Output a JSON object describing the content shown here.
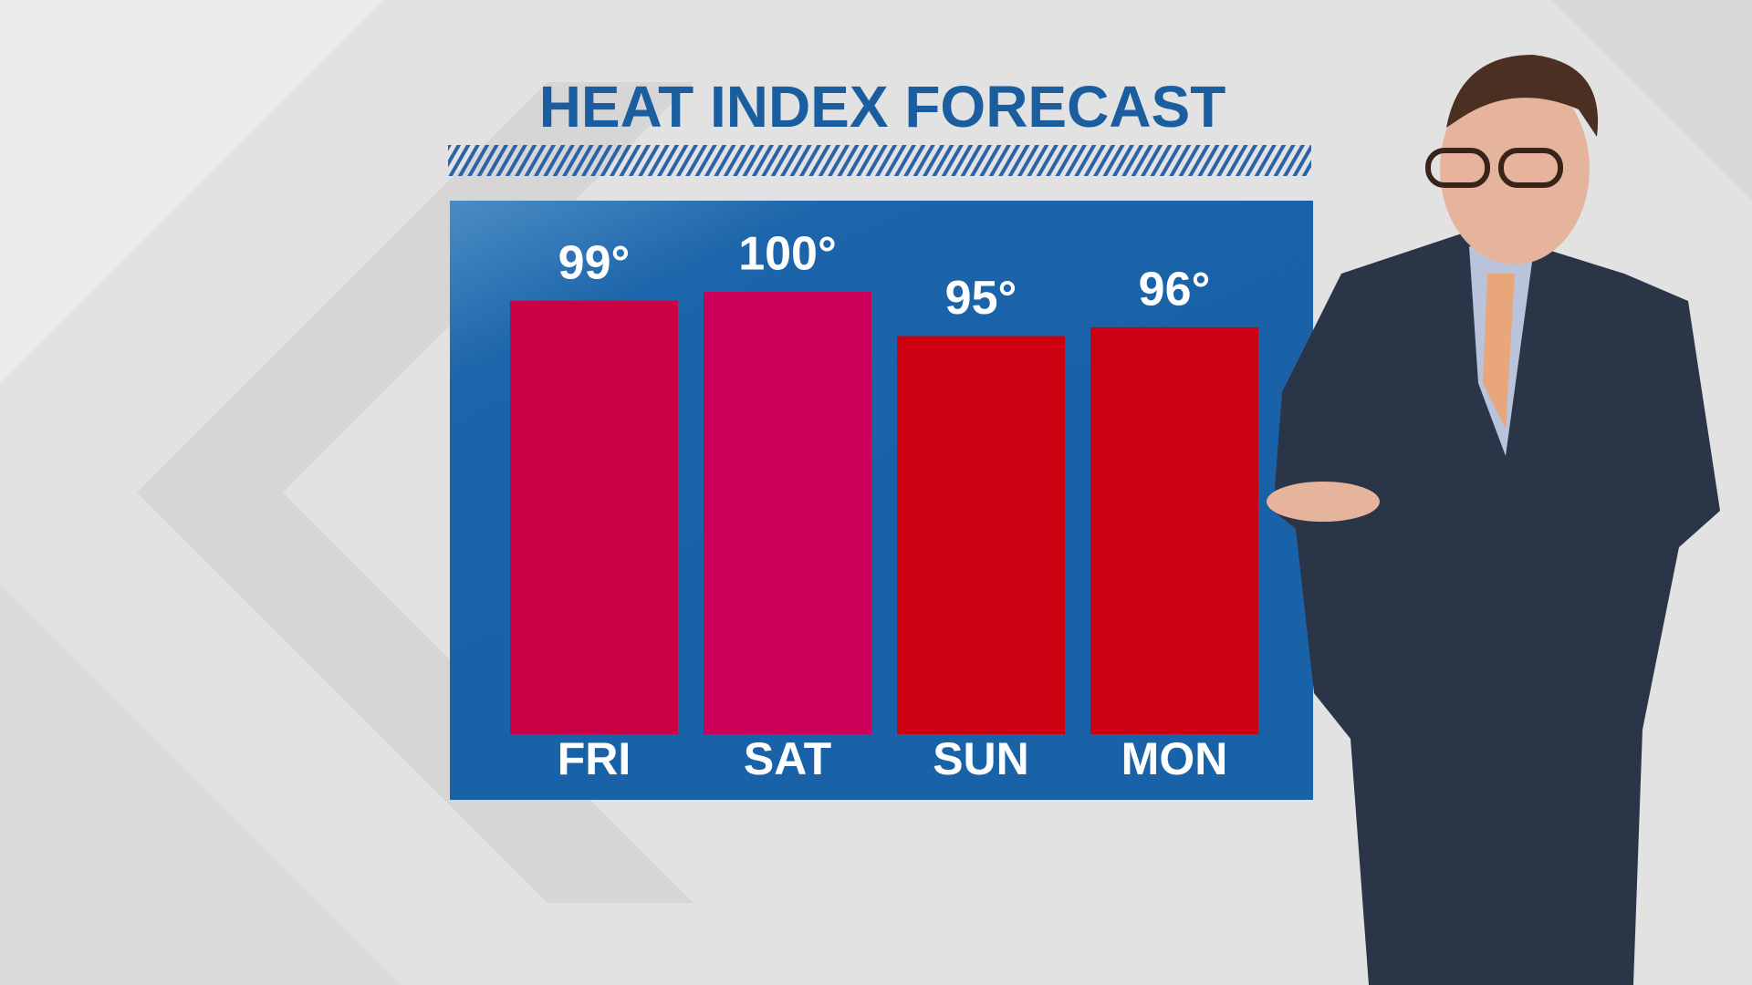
{
  "chart_data": {
    "type": "bar",
    "title": "HEAT INDEX FORECAST",
    "categories": [
      "FRI",
      "SAT",
      "SUN",
      "MON"
    ],
    "values": [
      99,
      100,
      95,
      96
    ],
    "value_labels": [
      "99°",
      "100°",
      "95°",
      "96°"
    ],
    "colors": [
      "#cc0044",
      "#cc005a",
      "#cc0010",
      "#cc0010"
    ],
    "ylim": [
      50,
      100
    ]
  }
}
